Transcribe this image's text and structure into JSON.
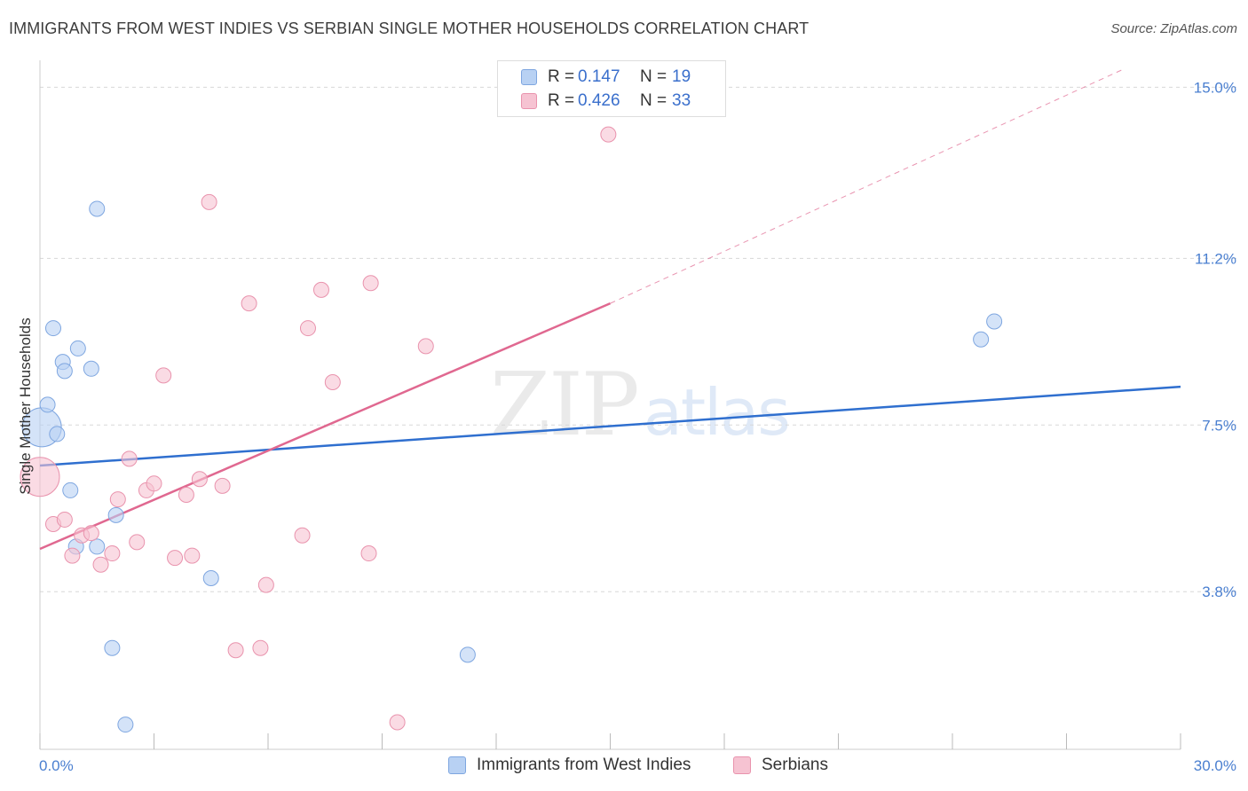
{
  "title": "IMMIGRANTS FROM WEST INDIES VS SERBIAN SINGLE MOTHER HOUSEHOLDS CORRELATION CHART",
  "source": "Source: ZipAtlas.com",
  "watermark": {
    "zip": "ZIP",
    "atlas": "atlas"
  },
  "legend": {
    "rows": [
      {
        "r_label": "R =",
        "r_value": "0.147",
        "n_label": "N =",
        "n_value": "19"
      },
      {
        "r_label": "R =",
        "r_value": "0.426",
        "n_label": "N =",
        "n_value": "33"
      }
    ]
  },
  "bottom_legend": [
    "Immigrants from West Indies",
    "Serbians"
  ],
  "colors": {
    "blue_fill": "#b8d1f3",
    "blue_stroke": "#7ea6e0",
    "blue_line": "#2f6fcf",
    "pink_fill": "#f6c3d2",
    "pink_stroke": "#e993ad",
    "pink_line": "#e06890",
    "tick_text": "#4a7fd0",
    "grid": "#d8d8d8"
  },
  "chart_data": {
    "type": "scatter",
    "title": "IMMIGRANTS FROM WEST INDIES VS SERBIAN SINGLE MOTHER HOUSEHOLDS CORRELATION CHART",
    "xlabel": "",
    "ylabel": "Single Mother Households",
    "xlim": [
      0,
      30
    ],
    "ylim": [
      0.3,
      15.4
    ],
    "y_ticks": [
      3.8,
      7.5,
      11.2,
      15.0
    ],
    "y_tick_labels": [
      "3.8%",
      "7.5%",
      "11.2%",
      "15.0%"
    ],
    "x_tick_labels": [
      "0.0%",
      "30.0%"
    ],
    "series": [
      {
        "name": "Immigrants from West Indies",
        "color": "blue",
        "points": [
          {
            "x": 0.05,
            "y": 7.45,
            "big": true
          },
          {
            "x": 0.2,
            "y": 7.95
          },
          {
            "x": 0.35,
            "y": 9.65
          },
          {
            "x": 0.45,
            "y": 7.3
          },
          {
            "x": 0.6,
            "y": 8.9
          },
          {
            "x": 0.65,
            "y": 8.7
          },
          {
            "x": 0.8,
            "y": 6.05
          },
          {
            "x": 0.95,
            "y": 4.8
          },
          {
            "x": 1.0,
            "y": 9.2
          },
          {
            "x": 1.35,
            "y": 8.75
          },
          {
            "x": 1.5,
            "y": 12.3
          },
          {
            "x": 1.5,
            "y": 4.8
          },
          {
            "x": 1.9,
            "y": 2.55
          },
          {
            "x": 2.0,
            "y": 5.5
          },
          {
            "x": 2.25,
            "y": 0.85
          },
          {
            "x": 4.5,
            "y": 4.1
          },
          {
            "x": 11.25,
            "y": 2.4
          },
          {
            "x": 24.75,
            "y": 9.4
          },
          {
            "x": 25.1,
            "y": 9.8
          }
        ],
        "trend": {
          "x0": 0,
          "y0": 6.6,
          "x1": 30,
          "y1": 8.35
        }
      },
      {
        "name": "Serbians",
        "color": "pink",
        "points": [
          {
            "x": 0.0,
            "y": 6.35,
            "big": true
          },
          {
            "x": 0.35,
            "y": 5.3
          },
          {
            "x": 0.65,
            "y": 5.4
          },
          {
            "x": 0.85,
            "y": 4.6
          },
          {
            "x": 1.1,
            "y": 5.05
          },
          {
            "x": 1.35,
            "y": 5.1
          },
          {
            "x": 1.6,
            "y": 4.4
          },
          {
            "x": 1.9,
            "y": 4.65
          },
          {
            "x": 2.05,
            "y": 5.85
          },
          {
            "x": 2.35,
            "y": 6.75
          },
          {
            "x": 2.55,
            "y": 4.9
          },
          {
            "x": 2.8,
            "y": 6.05
          },
          {
            "x": 3.0,
            "y": 6.2
          },
          {
            "x": 3.25,
            "y": 8.6
          },
          {
            "x": 3.55,
            "y": 4.55
          },
          {
            "x": 3.85,
            "y": 5.95
          },
          {
            "x": 4.0,
            "y": 4.6
          },
          {
            "x": 4.2,
            "y": 6.3
          },
          {
            "x": 4.45,
            "y": 12.45
          },
          {
            "x": 4.8,
            "y": 6.15
          },
          {
            "x": 5.15,
            "y": 2.5
          },
          {
            "x": 5.5,
            "y": 10.2
          },
          {
            "x": 5.8,
            "y": 2.55
          },
          {
            "x": 5.95,
            "y": 3.95
          },
          {
            "x": 6.9,
            "y": 5.05
          },
          {
            "x": 7.05,
            "y": 9.65
          },
          {
            "x": 7.4,
            "y": 10.5
          },
          {
            "x": 7.7,
            "y": 8.45
          },
          {
            "x": 8.65,
            "y": 4.65
          },
          {
            "x": 8.7,
            "y": 10.65
          },
          {
            "x": 9.4,
            "y": 0.9
          },
          {
            "x": 10.15,
            "y": 9.25
          },
          {
            "x": 14.95,
            "y": 13.95
          }
        ],
        "trend": {
          "x0": 0,
          "y0": 4.75,
          "x1": 15,
          "y1": 10.2
        },
        "trend_dashed_extension": {
          "x0": 15,
          "y0": 10.2,
          "x1": 28.5,
          "y1": 15.4
        }
      }
    ]
  }
}
